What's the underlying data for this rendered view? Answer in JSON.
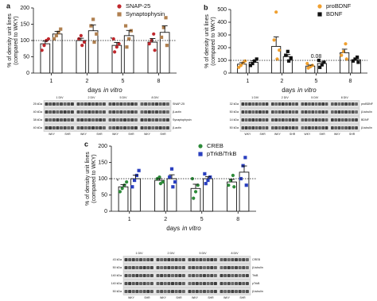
{
  "chart_data": [
    {
      "type": "bar",
      "panel_label": "a",
      "ylabel": [
        "% of density unit lines",
        "(compared to WKY)"
      ],
      "xlabel": [
        "days",
        "in vitro"
      ],
      "categories": [
        "1",
        "2",
        "5",
        "8"
      ],
      "ylim": [
        0,
        200
      ],
      "yticks": [
        0,
        50,
        100,
        150,
        200
      ],
      "reference_line": 100,
      "series": [
        {
          "name": "SNAP-25",
          "color": "#c0282d",
          "marker": "circle",
          "values": [
            90,
            100,
            85,
            95
          ],
          "errors": [
            8,
            7,
            9,
            11
          ],
          "points": [
            [
              70,
              85,
              100,
              105
            ],
            [
              85,
              95,
              105,
              115
            ],
            [
              65,
              80,
              90,
              105
            ],
            [
              70,
              90,
              100,
              120
            ]
          ]
        },
        {
          "name": "Synaptophysin",
          "color": "#b08050",
          "marker": "square",
          "values": [
            120,
            130,
            115,
            125
          ],
          "errors": [
            8,
            18,
            16,
            20
          ],
          "points": [
            [
              105,
              115,
              125,
              135
            ],
            [
              95,
              120,
              145,
              165
            ],
            [
              80,
              105,
              130,
              145
            ],
            [
              85,
              110,
              140,
              170
            ]
          ]
        }
      ],
      "annotations": [
        {
          "text": "*",
          "category": "5",
          "series": "SNAP-25"
        }
      ]
    },
    {
      "type": "bar",
      "panel_label": "b",
      "ylabel": [
        "% of density unit lines",
        "(compared to WKY)"
      ],
      "xlabel": [
        "days",
        "in vitro"
      ],
      "categories": [
        "1",
        "2",
        "5",
        "8"
      ],
      "ylim": [
        0,
        500
      ],
      "yticks": [
        0,
        100,
        200,
        300,
        400,
        500
      ],
      "reference_line": 100,
      "series": [
        {
          "name": "proBDNF",
          "color": "#f0a030",
          "marker": "circle",
          "values": [
            70,
            210,
            55,
            160
          ],
          "errors": [
            12,
            75,
            8,
            28
          ],
          "points": [
            [
              45,
              60,
              80,
              95
            ],
            [
              110,
              180,
              260,
              480
            ],
            [
              40,
              50,
              60,
              75
            ],
            [
              110,
              140,
              170,
              230
            ]
          ]
        },
        {
          "name": "BDNF",
          "color": "#111111",
          "marker": "square",
          "values": [
            85,
            130,
            75,
            105
          ],
          "errors": [
            11,
            16,
            13,
            9
          ],
          "points": [
            [
              60,
              75,
              95,
              110
            ],
            [
              95,
              115,
              140,
              170
            ],
            [
              45,
              65,
              85,
              100
            ],
            [
              85,
              95,
              110,
              125
            ]
          ]
        }
      ],
      "annotations": [
        {
          "text": "0.08",
          "category": "5"
        }
      ]
    },
    {
      "type": "bar",
      "panel_label": "c",
      "ylabel": [
        "% of density unit lines",
        "(compared to WKY)"
      ],
      "xlabel": [
        "days",
        "in vitro"
      ],
      "categories": [
        "1",
        "2",
        "5",
        "8"
      ],
      "ylim": [
        0,
        200
      ],
      "yticks": [
        0,
        50,
        100,
        150,
        200
      ],
      "reference_line": 100,
      "series": [
        {
          "name": "CREB",
          "color": "#2e8b3a",
          "marker": "circle",
          "values": [
            75,
            95,
            70,
            90
          ],
          "errors": [
            7,
            5,
            13,
            8
          ],
          "points": [
            [
              60,
              70,
              80,
              90
            ],
            [
              85,
              90,
              100,
              105
            ],
            [
              40,
              60,
              80,
              100
            ],
            [
              75,
              80,
              95,
              110
            ]
          ]
        },
        {
          "name": "pTrkB/TrkB",
          "color": "#2a3fbf",
          "marker": "square",
          "values": [
            100,
            100,
            100,
            120
          ],
          "errors": [
            11,
            12,
            6,
            19
          ],
          "points": [
            [
              75,
              95,
              110,
              125
            ],
            [
              75,
              90,
              105,
              130
            ],
            [
              85,
              95,
              105,
              115
            ],
            [
              80,
              100,
              140,
              165
            ]
          ]
        }
      ],
      "annotations": [
        {
          "text": "*",
          "category": "1",
          "series": "CREB"
        }
      ]
    }
  ],
  "blots": [
    {
      "divs": [
        "1 DIV",
        "2 DIV",
        "5 DIV",
        "8 DIV"
      ],
      "lanes": [
        "WKY",
        "SHR"
      ],
      "bands": [
        "SNAP-25",
        "β-actin",
        "Synaptophysin",
        "β-actin"
      ],
      "kda": [
        "25 kDa",
        "40 kDa",
        "38 kDa",
        "40 kDa"
      ]
    },
    {
      "divs": [
        "1 DIV",
        "2 DIV",
        "5 DIV",
        "8 DIV"
      ],
      "lanes": [
        "WKY",
        "SHR"
      ],
      "bands": [
        "proBDNF",
        "β-tubulin",
        "BDNF",
        "β-tubulin"
      ],
      "kda": [
        "32 kDa",
        "50 kDa",
        "14 kDa",
        "50 kDa"
      ]
    },
    {
      "divs": [
        "1 DIV",
        "2 DIV",
        "5 DIV",
        "8 DIV"
      ],
      "lanes": [
        "WKY",
        "SHR"
      ],
      "bands": [
        "CREB",
        "β-tubulin",
        "TrkB",
        "pTrkB",
        "β-tubulin"
      ],
      "kda": [
        "43 kDa",
        "50 kDa",
        "140 kDa",
        "140 kDa",
        "50 kDa"
      ]
    }
  ]
}
